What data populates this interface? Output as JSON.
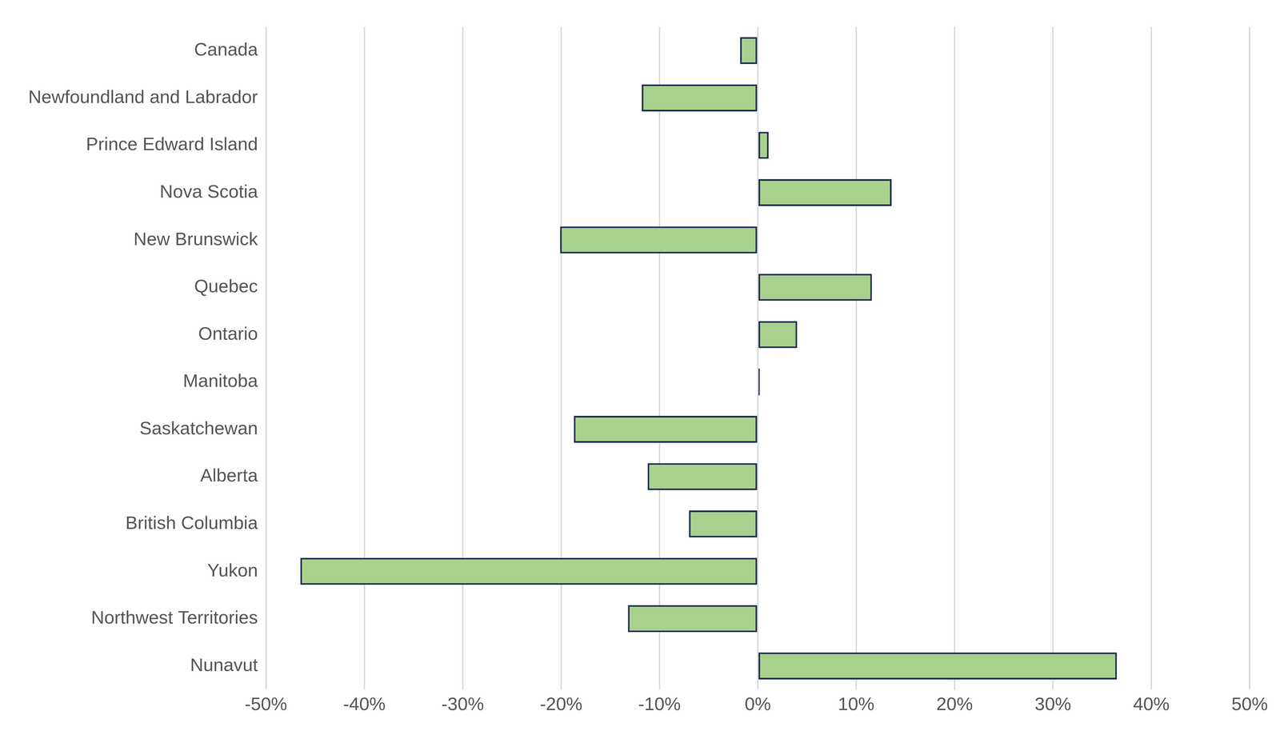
{
  "chart_data": {
    "type": "bar",
    "orientation": "horizontal",
    "categories": [
      "Canada",
      "Newfoundland and Labrador",
      "Prince Edward Island",
      "Nova Scotia",
      "New Brunswick",
      "Quebec",
      "Ontario",
      "Manitoba",
      "Saskatchewan",
      "Alberta",
      "British Columbia",
      "Yukon",
      "Northwest Territories",
      "Nunavut"
    ],
    "values": [
      -1.8,
      -11.8,
      1.1,
      13.6,
      -20.1,
      11.6,
      4.0,
      0.2,
      -18.7,
      -11.2,
      -7.0,
      -46.5,
      -13.2,
      36.5
    ],
    "color": "#a9d18e",
    "xlim": [
      -50,
      50
    ],
    "xticks": [
      {
        "value": -50,
        "label": "-50%"
      },
      {
        "value": -40,
        "label": "-40%"
      },
      {
        "value": -30,
        "label": "-30%"
      },
      {
        "value": -20,
        "label": "-20%"
      },
      {
        "value": -10,
        "label": "-10%"
      },
      {
        "value": 0,
        "label": "0%"
      },
      {
        "value": 10,
        "label": "10%"
      },
      {
        "value": 20,
        "label": "20%"
      },
      {
        "value": 30,
        "label": "30%"
      },
      {
        "value": 40,
        "label": "40%"
      },
      {
        "value": 50,
        "label": "50%"
      }
    ],
    "grid": true,
    "data_labels": false
  }
}
